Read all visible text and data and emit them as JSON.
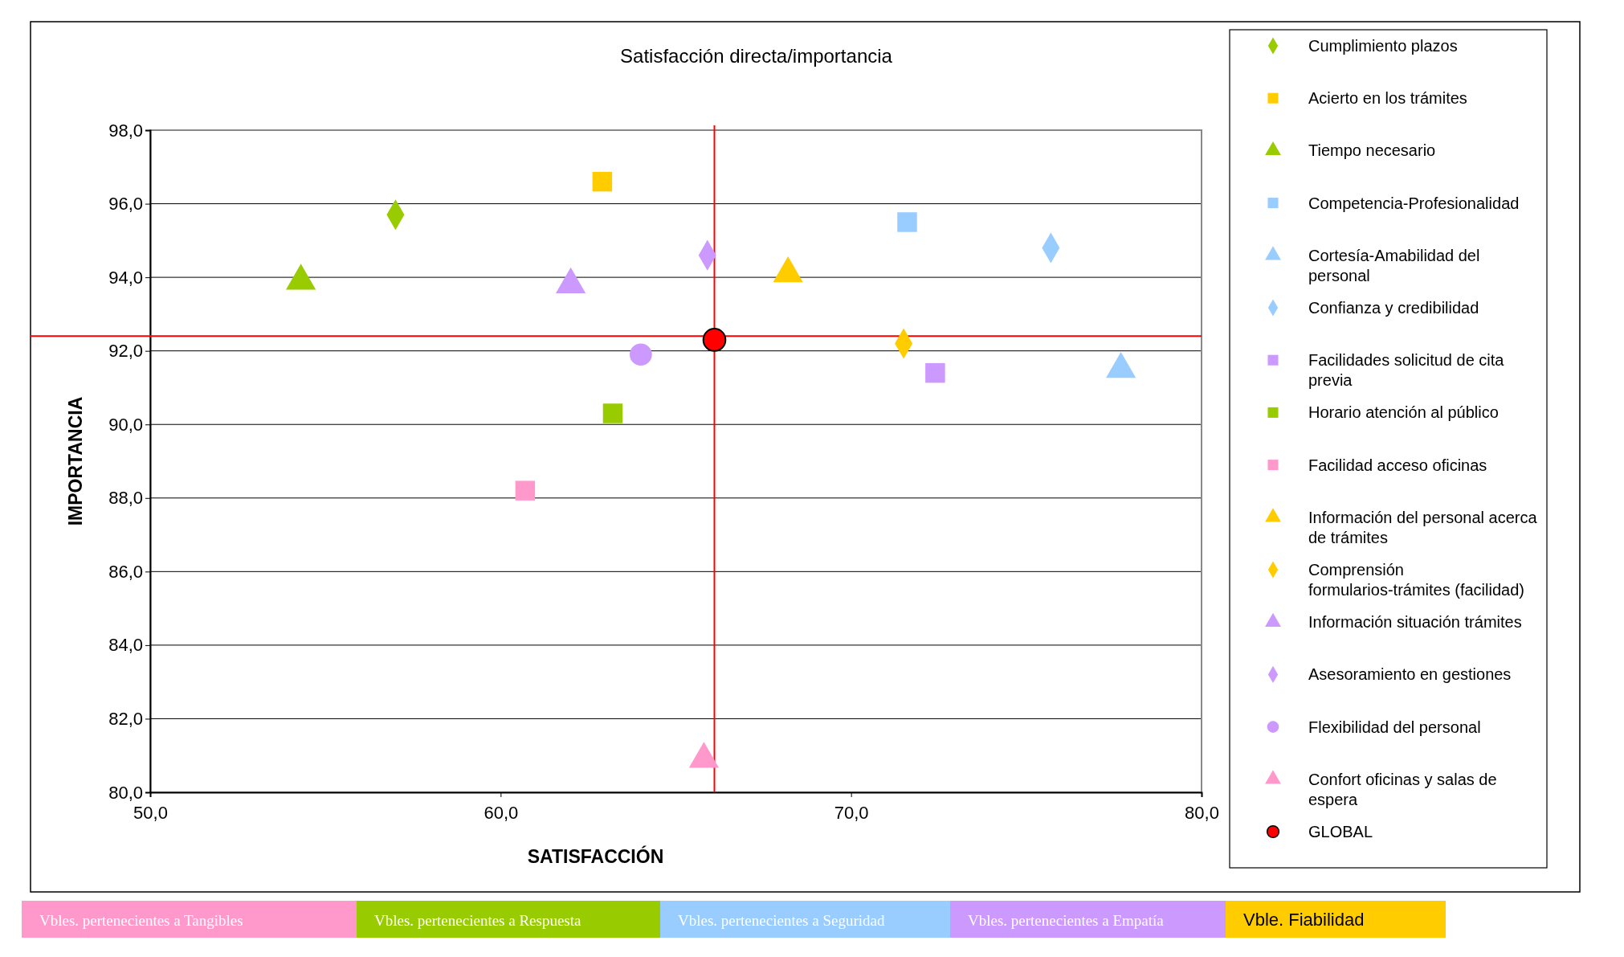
{
  "chart_data": {
    "type": "scatter",
    "title": "Satisfacción directa/importancia",
    "xlabel": "SATISFACCIÓN",
    "ylabel": "IMPORTANCIA",
    "xlim": [
      50,
      80
    ],
    "xticks": [
      {
        "value": 50,
        "label": "50,0"
      },
      {
        "value": 60,
        "label": "60,0"
      },
      {
        "value": 70,
        "label": "70,0"
      },
      {
        "value": 80,
        "label": "80,0"
      }
    ],
    "ylim": [
      80,
      98
    ],
    "yticks": [
      {
        "value": 80,
        "label": "80,0"
      },
      {
        "value": 82,
        "label": "82,0"
      },
      {
        "value": 84,
        "label": "84,0"
      },
      {
        "value": 86,
        "label": "86,0"
      },
      {
        "value": 88,
        "label": "88,0"
      },
      {
        "value": 90,
        "label": "90,0"
      },
      {
        "value": 92,
        "label": "92,0"
      },
      {
        "value": 94,
        "label": "94,0"
      },
      {
        "value": 96,
        "label": "96,0"
      },
      {
        "value": 98,
        "label": "98,0"
      }
    ],
    "grid": "y",
    "legend": "right",
    "series": [
      {
        "name": "Cumplimiento plazos",
        "color": "#99cc00",
        "marker": "diamond",
        "x": [
          57.0
        ],
        "values": [
          95.7
        ]
      },
      {
        "name": "Acierto en los trámites",
        "color": "#ffcc00",
        "marker": "square",
        "x": [
          62.9
        ],
        "values": [
          96.6
        ]
      },
      {
        "name": "Tiempo necesario",
        "color": "#99cc00",
        "marker": "triangle",
        "x": [
          54.3
        ],
        "values": [
          93.9
        ]
      },
      {
        "name": "Competencia-Profesionalidad",
        "color": "#99ccff",
        "marker": "square",
        "x": [
          71.6
        ],
        "values": [
          95.5
        ]
      },
      {
        "name": "Cortesía-Amabilidad del personal",
        "color": "#99ccff",
        "marker": "triangle",
        "x": [
          77.7
        ],
        "values": [
          91.5
        ]
      },
      {
        "name": "Confianza y credibilidad",
        "color": "#99ccff",
        "marker": "diamond",
        "x": [
          75.7
        ],
        "values": [
          94.8
        ]
      },
      {
        "name": "Facilidades solicitud de cita previa",
        "color": "#cc99ff",
        "marker": "square",
        "x": [
          72.4
        ],
        "values": [
          91.4
        ]
      },
      {
        "name": "Horario atención al público",
        "color": "#99cc00",
        "marker": "square",
        "x": [
          63.2
        ],
        "values": [
          90.3
        ]
      },
      {
        "name": "Facilidad acceso oficinas",
        "color": "#ff99cc",
        "marker": "square",
        "x": [
          60.7
        ],
        "values": [
          88.2
        ]
      },
      {
        "name": "Información del personal acerca de trámites",
        "color": "#ffcc00",
        "marker": "triangle",
        "x": [
          68.2
        ],
        "values": [
          94.1
        ]
      },
      {
        "name": "Comprensión formularios-trámites (facilidad)",
        "color": "#ffcc00",
        "marker": "diamond",
        "x": [
          71.5
        ],
        "values": [
          92.2
        ]
      },
      {
        "name": "Información situación trámites",
        "color": "#cc99ff",
        "marker": "triangle",
        "x": [
          62.0
        ],
        "values": [
          93.8
        ]
      },
      {
        "name": "Asesoramiento en gestiones",
        "color": "#cc99ff",
        "marker": "diamond",
        "x": [
          65.9
        ],
        "values": [
          94.6
        ]
      },
      {
        "name": "Flexibilidad del personal",
        "color": "#cc99ff",
        "marker": "circle",
        "x": [
          64.0
        ],
        "values": [
          91.9
        ]
      },
      {
        "name": "Confort oficinas y salas de espera",
        "color": "#ff99cc",
        "marker": "triangle",
        "x": [
          65.8
        ],
        "values": [
          80.9
        ]
      },
      {
        "name": "GLOBAL",
        "color": "#ff0000",
        "marker": "circle",
        "x": [
          66.1
        ],
        "values": [
          92.3
        ]
      }
    ],
    "ref_lines": [
      {
        "axis": "x",
        "value": 66.1,
        "label": null,
        "color": "#ff0000"
      },
      {
        "axis": "y",
        "value": 92.4,
        "label": null,
        "color": "#ff0000"
      }
    ],
    "annotations": [
      "Vbles. pertenecientes a Tangibles",
      "Vbles. pertenecientes a Respuesta",
      "Vbles. pertenecientes a Seguridad",
      "Vbles. pertenecientes a Empatía",
      "Vble. Fiabilidad"
    ]
  }
}
